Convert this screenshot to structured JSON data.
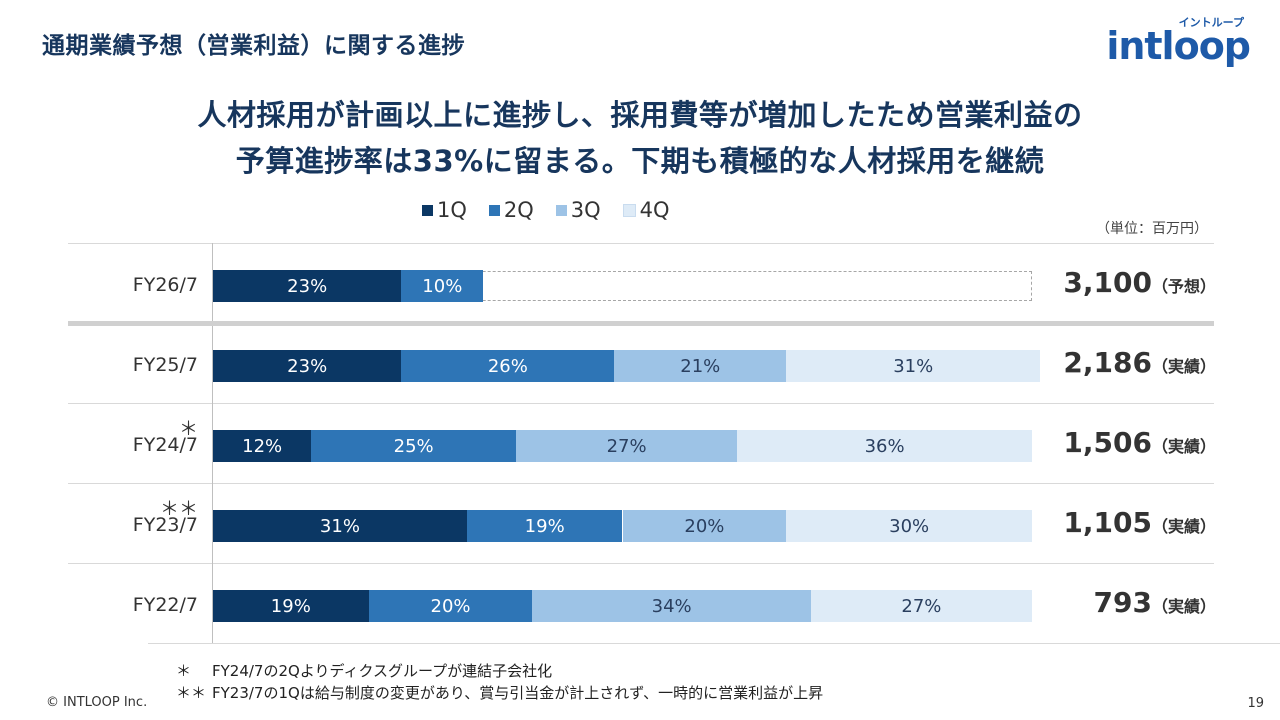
{
  "header": {
    "title": "通期業績予想（営業利益）に関する進捗",
    "logo_kana": "イントループ",
    "logo_word": "intloop"
  },
  "headline": {
    "line1": "人材採用が計画以上に進捗し、採用費等が増加したため営業利益の",
    "line2": "予算進捗率は33%に留まる。下期も積極的な人材採用を継続"
  },
  "unit_label": "（単位：百万円）",
  "colors": {
    "q1": "#0b3764",
    "q2": "#2e75b6",
    "q3": "#9dc3e6",
    "q4": "#deebf7"
  },
  "chart_data": {
    "type": "bar",
    "orientation": "horizontal",
    "stacked": true,
    "normalized_to_percent": true,
    "legend": [
      "1Q",
      "2Q",
      "3Q",
      "4Q"
    ],
    "legend_position": "top",
    "categories": [
      "FY26/7",
      "FY25/7",
      "FY24/7",
      "FY23/7",
      "FY22/7"
    ],
    "rows": [
      {
        "label": "FY26/7",
        "star": "",
        "values": [
          23,
          10
        ],
        "labels": [
          "23%",
          "10%"
        ],
        "forecast_outline": true,
        "total": "3,100",
        "total_tag": "（予想）"
      },
      {
        "label": "FY25/7",
        "star": "",
        "values": [
          23,
          26,
          21,
          31
        ],
        "labels": [
          "23%",
          "26%",
          "21%",
          "31%"
        ],
        "forecast_outline": false,
        "total": "2,186",
        "total_tag": "（実績）"
      },
      {
        "label": "FY24/7",
        "star": "＊",
        "values": [
          12,
          25,
          27,
          36
        ],
        "labels": [
          "12%",
          "25%",
          "27%",
          "36%"
        ],
        "forecast_outline": false,
        "total": "1,506",
        "total_tag": "（実績）"
      },
      {
        "label": "FY23/7",
        "star": "＊＊",
        "values": [
          31,
          19,
          20,
          30
        ],
        "labels": [
          "31%",
          "19%",
          "20%",
          "30%"
        ],
        "forecast_outline": false,
        "total": "1,105",
        "total_tag": "（実績）"
      },
      {
        "label": "FY22/7",
        "star": "",
        "values": [
          19,
          20,
          34,
          27
        ],
        "labels": [
          "19%",
          "20%",
          "34%",
          "27%"
        ],
        "forecast_outline": false,
        "total": "793",
        "total_tag": "（実績）"
      }
    ]
  },
  "notes": [
    {
      "mark": "＊",
      "text": "FY24/7の2Qよりディクスグループが連結子会社化"
    },
    {
      "mark": "＊＊",
      "text": "FY23/7の1Qは給与制度の変更があり、賞与引当金が計上されず、一時的に営業利益が上昇"
    }
  ],
  "footer": {
    "copyright": "© INTLOOP Inc.",
    "page": "19"
  }
}
